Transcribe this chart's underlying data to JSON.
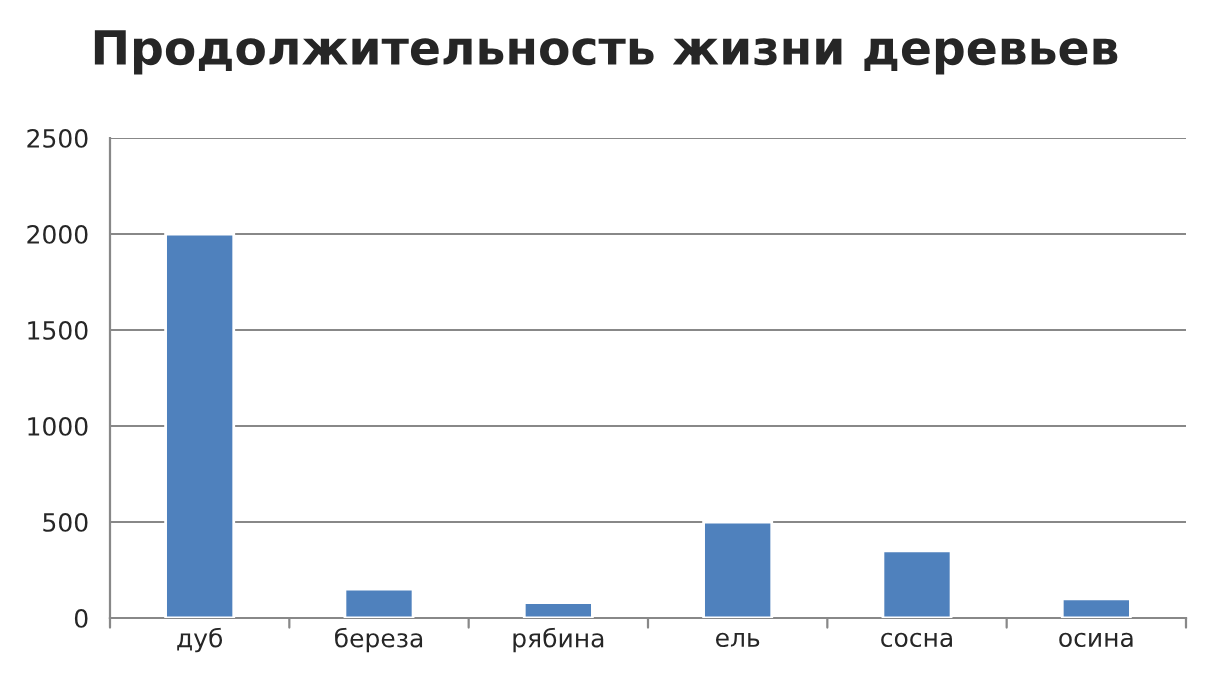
{
  "chart_data": {
    "type": "bar",
    "title": "Продолжительность жизни деревьев",
    "categories": [
      "дуб",
      "береза",
      "рябина",
      "ель",
      "сосна",
      "осина"
    ],
    "values": [
      2000,
      150,
      80,
      500,
      350,
      100
    ],
    "color": "#4f81bd",
    "ylim": [
      0,
      2500
    ],
    "yticks": [
      0,
      500,
      1000,
      1500,
      2000,
      2500
    ],
    "grid": "y"
  }
}
